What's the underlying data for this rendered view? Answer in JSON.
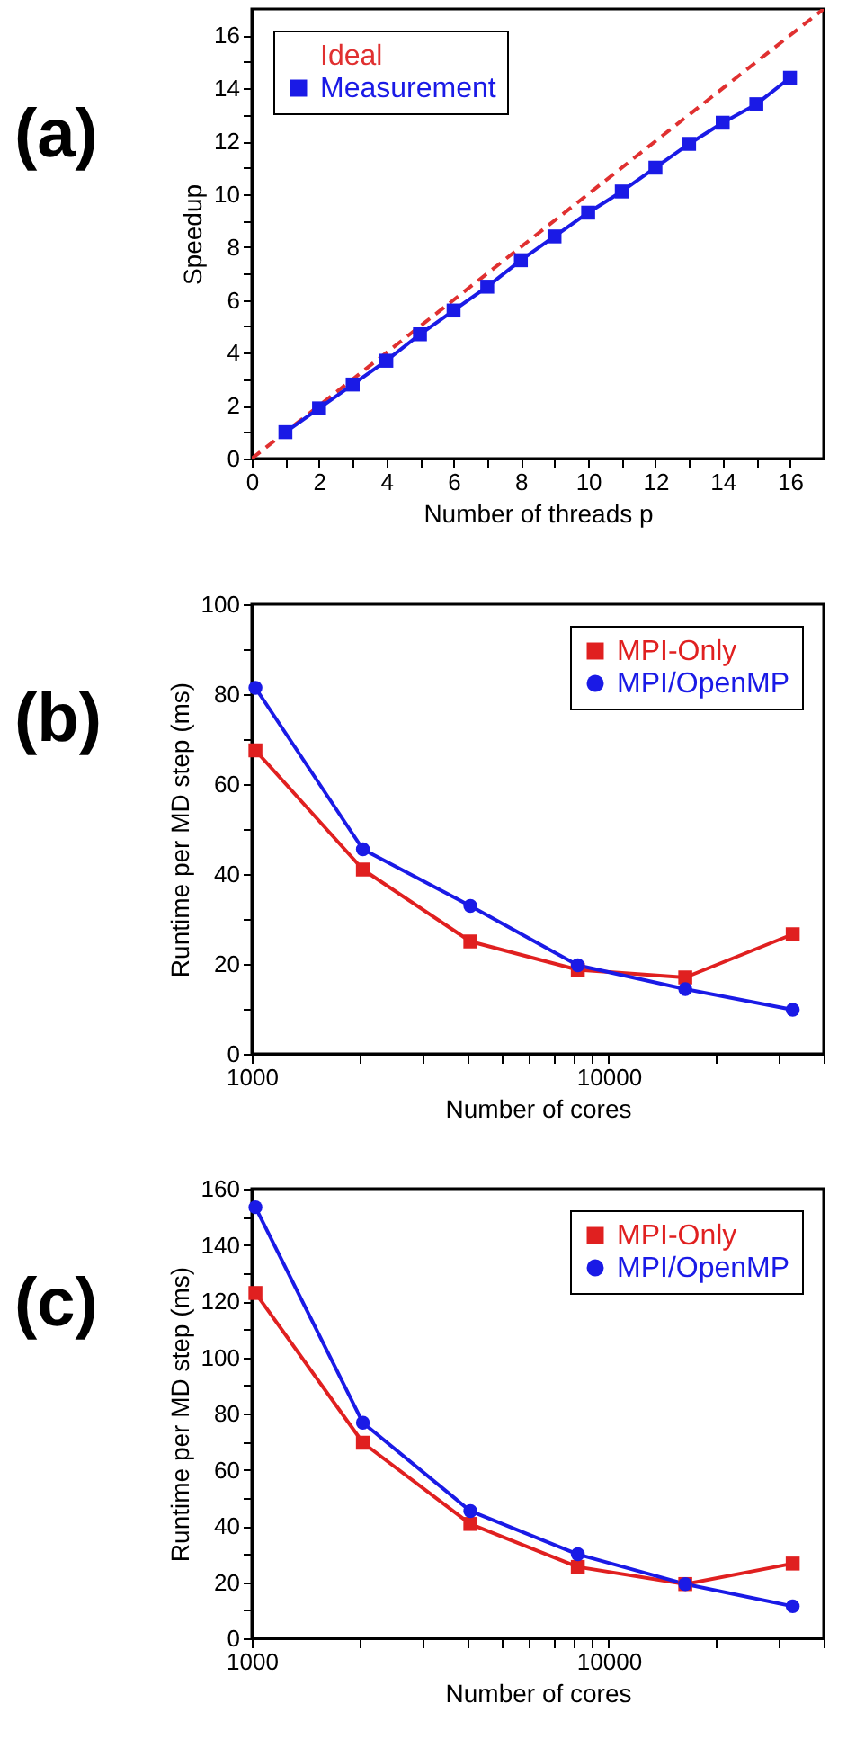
{
  "chart_data": [
    {
      "type": "line",
      "title": "(a)",
      "xlabel": "Number of threads p",
      "ylabel": "Speedup",
      "xlim": [
        0,
        17
      ],
      "ylim": [
        0,
        17
      ],
      "xticks": [
        0,
        {
          "value": 1,
          "label": null
        },
        2,
        {
          "value": 3,
          "label": null
        },
        4,
        {
          "value": 5,
          "label": null
        },
        6,
        {
          "value": 7,
          "label": null
        },
        8,
        {
          "value": 9,
          "label": null
        },
        10,
        {
          "value": 11,
          "label": null
        },
        12,
        {
          "value": 13,
          "label": null
        },
        14,
        {
          "value": 15,
          "label": null
        },
        16
      ],
      "yticks": [
        0,
        {
          "value": 1,
          "label": null
        },
        2,
        {
          "value": 3,
          "label": null
        },
        4,
        {
          "value": 5,
          "label": null
        },
        6,
        {
          "value": 7,
          "label": null
        },
        8,
        {
          "value": 9,
          "label": null
        },
        10,
        {
          "value": 11,
          "label": null
        },
        12,
        {
          "value": 13,
          "label": null
        },
        14,
        {
          "value": 15,
          "label": null
        },
        16
      ],
      "grid": false,
      "legend": "top left",
      "series": [
        {
          "name": "Ideal",
          "color": "#e03030",
          "x": [
            0,
            17
          ],
          "values": [
            0,
            17
          ],
          "line_style": "dashed",
          "marker": "none"
        },
        {
          "name": "Measurement",
          "color": "#1a1ae6",
          "x": [
            1,
            2,
            3,
            4,
            5,
            6,
            7,
            8,
            9,
            10,
            11,
            12,
            13,
            14,
            15,
            16
          ],
          "values": [
            1,
            1.9,
            2.8,
            3.7,
            4.7,
            5.6,
            6.5,
            7.5,
            8.4,
            9.3,
            10.1,
            11,
            11.9,
            12.7,
            13.4,
            14.4
          ],
          "line_style": "solid",
          "marker": "square"
        }
      ]
    },
    {
      "type": "line",
      "title": "(b)",
      "xlabel": "Number of cores",
      "ylabel": "Runtime per MD step (ms)",
      "log": "x",
      "xlim": [
        1000,
        40000
      ],
      "ylim": [
        0,
        100
      ],
      "xticks": [
        1000,
        {
          "value": 2000,
          "label": null
        },
        {
          "value": 3000,
          "label": null
        },
        {
          "value": 4000,
          "label": null
        },
        {
          "value": 5000,
          "label": null
        },
        {
          "value": 6000,
          "label": null
        },
        {
          "value": 7000,
          "label": null
        },
        {
          "value": 8000,
          "label": null
        },
        {
          "value": 9000,
          "label": null
        },
        10000,
        {
          "value": 20000,
          "label": null
        },
        {
          "value": 30000,
          "label": null
        },
        {
          "value": 40000,
          "label": null
        }
      ],
      "yticks": [
        0,
        {
          "value": 10,
          "label": null
        },
        20,
        {
          "value": 30,
          "label": null
        },
        40,
        {
          "value": 50,
          "label": null
        },
        60,
        {
          "value": 70,
          "label": null
        },
        80,
        {
          "value": 90,
          "label": null
        },
        100
      ],
      "grid": false,
      "legend": "top right",
      "series": [
        {
          "name": "MPI-Only",
          "color": "#e02020",
          "x": [
            1024,
            2048,
            4096,
            8192,
            16384,
            32768
          ],
          "values": [
            67.5,
            41,
            25,
            18.7,
            17,
            26.6
          ],
          "line_style": "solid",
          "marker": "square"
        },
        {
          "name": "MPI/OpenMP",
          "color": "#1a1ae6",
          "x": [
            1024,
            2048,
            4096,
            8192,
            16384,
            32768
          ],
          "values": [
            81.4,
            45.5,
            32.9,
            19.7,
            14.4,
            9.8
          ],
          "line_style": "solid",
          "marker": "circle"
        }
      ]
    },
    {
      "type": "line",
      "title": "(c)",
      "xlabel": "Number of cores",
      "ylabel": "Runtime per MD step (ms)",
      "log": "x",
      "xlim": [
        1000,
        40000
      ],
      "ylim": [
        0,
        160
      ],
      "xticks": [
        1000,
        {
          "value": 2000,
          "label": null
        },
        {
          "value": 3000,
          "label": null
        },
        {
          "value": 4000,
          "label": null
        },
        {
          "value": 5000,
          "label": null
        },
        {
          "value": 6000,
          "label": null
        },
        {
          "value": 7000,
          "label": null
        },
        {
          "value": 8000,
          "label": null
        },
        {
          "value": 9000,
          "label": null
        },
        10000,
        {
          "value": 20000,
          "label": null
        },
        {
          "value": 30000,
          "label": null
        },
        {
          "value": 40000,
          "label": null
        }
      ],
      "yticks": [
        0,
        {
          "value": 10,
          "label": null
        },
        20,
        {
          "value": 30,
          "label": null
        },
        40,
        {
          "value": 50,
          "label": null
        },
        60,
        {
          "value": 70,
          "label": null
        },
        80,
        {
          "value": 90,
          "label": null
        },
        100,
        {
          "value": 110,
          "label": null
        },
        120,
        {
          "value": 130,
          "label": null
        },
        140,
        {
          "value": 150,
          "label": null
        },
        160
      ],
      "grid": false,
      "legend": "top right",
      "series": [
        {
          "name": "MPI-Only",
          "color": "#e02020",
          "x": [
            1024,
            2048,
            4096,
            8192,
            16384,
            32768
          ],
          "values": [
            122.9,
            69.6,
            40.7,
            25.4,
            19.3,
            26.6
          ],
          "line_style": "solid",
          "marker": "square"
        },
        {
          "name": "MPI/OpenMP",
          "color": "#1a1ae6",
          "x": [
            1024,
            2048,
            4096,
            8192,
            16384,
            32768
          ],
          "values": [
            153.4,
            76.7,
            45.3,
            29.9,
            19.3,
            11.4
          ],
          "line_style": "solid",
          "marker": "circle"
        }
      ]
    }
  ]
}
